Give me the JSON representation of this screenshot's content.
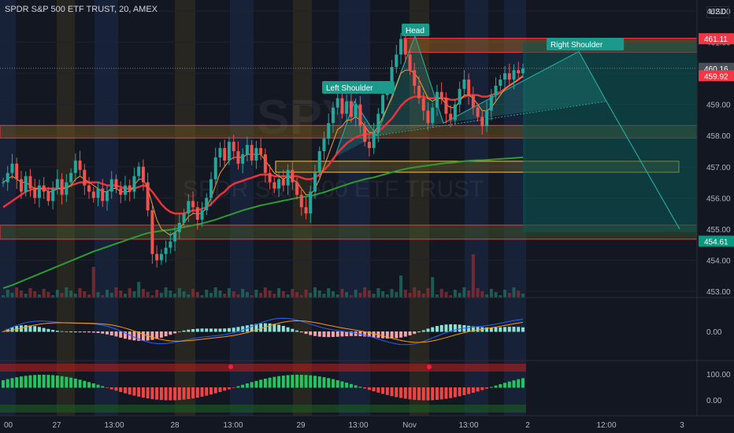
{
  "header": {
    "title": "SPDR S&P 500 ETF TRUST, 20, AMEX",
    "currency": "USD"
  },
  "watermark": {
    "ticker": "SPY",
    "name": "SPDR S&P 500 ETF TRUST"
  },
  "chart_data": {
    "type": "candlestick",
    "price_axis": {
      "ticks": [
        "462.00",
        "461.00",
        "460.00",
        "459.00",
        "458.00",
        "457.00",
        "456.00",
        "455.00",
        "454.00",
        "453.00"
      ],
      "range": [
        452.8,
        462.1
      ]
    },
    "price_tags": [
      {
        "value": "461.11",
        "color": "#f23645"
      },
      {
        "value": "460.16",
        "color": "#4a4e58"
      },
      {
        "value": "459.92",
        "color": "#f23645"
      },
      {
        "value": "454.61",
        "color": "#089981"
      }
    ],
    "time_axis": [
      "00",
      "27",
      "13:00",
      "28",
      "13:00",
      "29",
      "13:00",
      "Nov",
      "13:00",
      "2",
      "12:00",
      "3"
    ],
    "pattern_labels": [
      "Left Shoulder",
      "Head",
      "Right Shoulder"
    ],
    "support_resistance_zones": [
      [
        460.8,
        461.0
      ],
      [
        458.05,
        458.2
      ],
      [
        456.95,
        457.05
      ],
      [
        454.8,
        455.0
      ]
    ],
    "prices": [
      456.5,
      456.8,
      457.1,
      456.6,
      456.2,
      456.7,
      456.3,
      456.0,
      456.4,
      456.2,
      455.9,
      456.3,
      456.6,
      456.1,
      456.5,
      456.8,
      457.2,
      456.9,
      456.4,
      456.2,
      456.0,
      456.3,
      455.9,
      456.2,
      456.6,
      456.3,
      456.1,
      456.4,
      456.2,
      456.7,
      457.0,
      456.5,
      455.6,
      454.2,
      454.0,
      454.2,
      454.4,
      454.6,
      454.9,
      455.2,
      455.5,
      455.9,
      455.7,
      455.3,
      455.6,
      456.0,
      456.6,
      457.3,
      457.6,
      457.2,
      457.8,
      457.5,
      457.1,
      457.4,
      457.7,
      457.2,
      457.6,
      457.4,
      456.8,
      456.5,
      456.3,
      456.6,
      456.4,
      456.9,
      456.5,
      456.1,
      455.7,
      455.5,
      456.2,
      456.8,
      457.5,
      457.9,
      458.4,
      458.9,
      459.2,
      458.7,
      459.1,
      458.6,
      459.0,
      458.3,
      457.8,
      457.6,
      458.1,
      458.7,
      459.3,
      459.6,
      460.2,
      460.6,
      461.1,
      460.6,
      460.1,
      459.6,
      459.2,
      458.8,
      458.4,
      458.9,
      459.4,
      459.2,
      458.7,
      458.5,
      459.0,
      459.5,
      459.8,
      459.3,
      458.9,
      458.6,
      458.3,
      458.8,
      459.3,
      459.6,
      459.8,
      460.0,
      459.8,
      460.1,
      460.0,
      460.16
    ],
    "ma_fast": [
      456.5,
      456.6,
      456.7,
      456.6,
      456.5,
      456.5,
      456.4,
      456.3,
      456.3,
      456.3,
      456.2,
      456.2,
      456.3,
      456.3,
      456.3,
      456.4,
      456.6,
      456.7,
      456.6,
      456.5,
      456.4,
      456.3,
      456.2,
      456.2,
      456.3,
      456.3,
      456.2,
      456.2,
      456.2,
      456.4,
      456.6,
      456.6,
      456.3,
      455.8,
      455.3,
      455.0,
      454.9,
      454.8,
      454.9,
      455.0,
      455.2,
      455.4,
      455.5,
      455.5,
      455.5,
      455.7,
      456.0,
      456.4,
      456.8,
      457.0,
      457.2,
      457.3,
      457.3,
      457.3,
      457.4,
      457.4,
      457.4,
      457.4,
      457.2,
      457.0,
      456.8,
      456.7,
      456.6,
      456.7,
      456.6,
      456.5,
      456.3,
      456.1,
      456.1,
      456.3,
      456.6,
      457.0,
      457.4,
      457.8,
      458.2,
      458.3,
      458.5,
      458.5,
      458.6,
      458.5,
      458.3,
      458.1,
      458.1,
      458.3,
      458.6,
      458.9,
      459.2,
      459.6,
      460.0,
      460.1,
      460.1,
      460.0,
      459.8,
      459.5,
      459.2,
      459.1,
      459.2,
      459.2,
      459.0,
      458.9,
      458.9,
      459.1,
      459.3,
      459.3,
      459.2,
      459.0,
      458.8,
      458.8,
      458.9,
      459.1,
      459.3,
      459.5,
      459.6,
      459.7,
      459.8,
      459.9
    ],
    "ma_mid": [
      455.7,
      455.8,
      455.9,
      456.0,
      456.1,
      456.2,
      456.25,
      456.3,
      456.3,
      456.3,
      456.3,
      456.3,
      456.3,
      456.3,
      456.35,
      456.4,
      456.45,
      456.5,
      456.5,
      456.5,
      456.5,
      456.5,
      456.45,
      456.4,
      456.4,
      456.4,
      456.35,
      456.3,
      456.3,
      456.3,
      456.35,
      456.4,
      456.35,
      456.2,
      456.0,
      455.8,
      455.65,
      455.55,
      455.5,
      455.5,
      455.5,
      455.55,
      455.6,
      455.6,
      455.65,
      455.7,
      455.8,
      455.95,
      456.1,
      456.2,
      456.35,
      456.45,
      456.5,
      456.55,
      456.6,
      456.65,
      456.7,
      456.75,
      456.75,
      456.75,
      456.7,
      456.7,
      456.7,
      456.7,
      456.7,
      456.7,
      456.65,
      456.6,
      456.6,
      456.65,
      456.75,
      456.9,
      457.05,
      457.25,
      457.45,
      457.6,
      457.75,
      457.85,
      457.95,
      458.0,
      458.05,
      458.05,
      458.1,
      458.15,
      458.25,
      458.4,
      458.55,
      458.75,
      458.95,
      459.1,
      459.2,
      459.25,
      459.25,
      459.25,
      459.2,
      459.2,
      459.2,
      459.2,
      459.2,
      459.15,
      459.15,
      459.2,
      459.25,
      459.3,
      459.3,
      459.3,
      459.25,
      459.25,
      459.3,
      459.35,
      459.4,
      459.5,
      459.6,
      459.7,
      459.8,
      459.92
    ],
    "ma_slow": [
      453.1,
      453.15,
      453.2,
      453.26,
      453.32,
      453.38,
      453.44,
      453.5,
      453.56,
      453.62,
      453.68,
      453.74,
      453.8,
      453.86,
      453.92,
      453.98,
      454.04,
      454.1,
      454.16,
      454.22,
      454.28,
      454.33,
      454.38,
      454.43,
      454.48,
      454.53,
      454.58,
      454.63,
      454.68,
      454.73,
      454.78,
      454.83,
      454.87,
      454.9,
      454.92,
      454.94,
      454.96,
      454.98,
      455.0,
      455.03,
      455.06,
      455.09,
      455.12,
      455.15,
      455.18,
      455.22,
      455.26,
      455.3,
      455.35,
      455.4,
      455.45,
      455.5,
      455.55,
      455.6,
      455.64,
      455.68,
      455.72,
      455.76,
      455.79,
      455.82,
      455.85,
      455.88,
      455.91,
      455.94,
      455.97,
      456.0,
      456.02,
      456.04,
      456.06,
      456.1,
      456.14,
      456.18,
      456.23,
      456.28,
      456.33,
      456.38,
      456.43,
      456.48,
      456.52,
      456.56,
      456.6,
      456.63,
      456.66,
      456.7,
      456.74,
      456.78,
      456.82,
      456.86,
      456.9,
      456.93,
      456.96,
      456.98,
      457.0,
      457.02,
      457.04,
      457.06,
      457.08,
      457.1,
      457.12,
      457.13,
      457.14,
      457.16,
      457.18,
      457.19,
      457.2,
      457.21,
      457.21,
      457.22,
      457.23,
      457.24,
      457.25,
      457.26,
      457.27,
      457.28,
      457.29,
      457.3
    ],
    "macd_axis": [
      "0.00"
    ],
    "oscillator_axis": [
      "100.00",
      "0.00"
    ]
  }
}
